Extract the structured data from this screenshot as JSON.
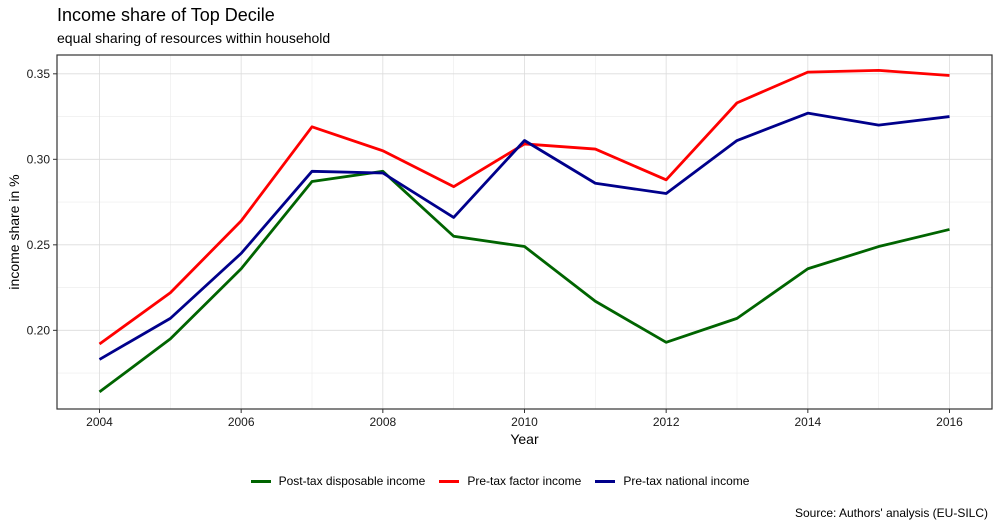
{
  "chart_data": {
    "type": "line",
    "title": "Income share of Top Decile",
    "subtitle": "equal sharing of resources within household",
    "xlabel": "Year",
    "ylabel": "income share in %",
    "xlim": [
      2003.4,
      2016.6
    ],
    "ylim": [
      0.154,
      0.361
    ],
    "x_ticks": [
      2004,
      2006,
      2008,
      2010,
      2012,
      2014,
      2016
    ],
    "y_ticks": [
      0.2,
      0.25,
      0.3,
      0.35
    ],
    "y_tick_labels": [
      "0.20",
      "0.25",
      "0.30",
      "0.35"
    ],
    "grid": true,
    "legend_position": "bottom",
    "x": [
      2004,
      2005,
      2006,
      2007,
      2008,
      2009,
      2010,
      2011,
      2012,
      2013,
      2014,
      2015,
      2016
    ],
    "series": [
      {
        "name": "Post-tax disposable income",
        "color": "#006400",
        "values": [
          0.164,
          0.195,
          0.236,
          0.287,
          0.293,
          0.255,
          0.249,
          0.217,
          0.193,
          0.207,
          0.236,
          0.249,
          0.259
        ]
      },
      {
        "name": "Pre-tax factor income",
        "color": "#ff0000",
        "values": [
          0.192,
          0.222,
          0.264,
          0.319,
          0.305,
          0.284,
          0.309,
          0.306,
          0.288,
          0.333,
          0.351,
          0.352,
          0.349
        ]
      },
      {
        "name": "Pre-tax national income",
        "color": "#00008b",
        "values": [
          0.183,
          0.207,
          0.245,
          0.293,
          0.292,
          0.266,
          0.311,
          0.286,
          0.28,
          0.311,
          0.327,
          0.32,
          0.325
        ]
      }
    ],
    "caption": "Source: Authors' analysis (EU-SILC)"
  }
}
